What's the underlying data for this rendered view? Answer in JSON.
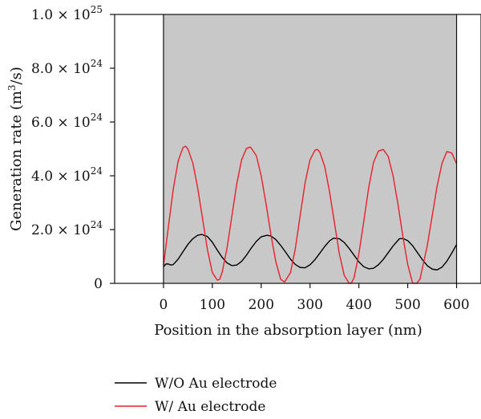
{
  "chart_data": {
    "type": "line",
    "xlabel": "Position in the absorption layer (nm)",
    "ylabel_prefix": "Generation rate (m",
    "ylabel_sup": "3",
    "ylabel_suffix": "/s)",
    "xlim": [
      -100,
      650
    ],
    "ylim": [
      0,
      1e+25
    ],
    "shaded_region_x": [
      0,
      600
    ],
    "shaded_color": "#c8c8c8",
    "x_ticks": [
      {
        "value": 0,
        "label": "0"
      },
      {
        "value": 100,
        "label": "100"
      },
      {
        "value": 200,
        "label": "200"
      },
      {
        "value": 300,
        "label": "300"
      },
      {
        "value": 400,
        "label": "400"
      },
      {
        "value": 500,
        "label": "500"
      },
      {
        "value": 600,
        "label": "600"
      }
    ],
    "y_ticks": [
      {
        "value": 0,
        "mant": "0",
        "exp": ""
      },
      {
        "value": 2e+24,
        "mant": "2.0 × 10",
        "exp": "24"
      },
      {
        "value": 4e+24,
        "mant": "4.0 × 10",
        "exp": "24"
      },
      {
        "value": 6e+24,
        "mant": "6.0 × 10",
        "exp": "24"
      },
      {
        "value": 8e+24,
        "mant": "8.0 × 10",
        "exp": "24"
      },
      {
        "value": 1e+25,
        "mant": "1.0 × 10",
        "exp": "25"
      }
    ],
    "series": [
      {
        "name": "W/O Au electrode",
        "color": "#000000",
        "x": [
          0,
          5,
          10,
          15,
          20,
          30,
          40,
          50,
          60,
          70,
          78,
          90,
          100,
          110,
          120,
          130,
          140,
          150,
          160,
          170,
          180,
          190,
          200,
          212,
          220,
          230,
          240,
          250,
          260,
          270,
          280,
          290,
          300,
          310,
          320,
          330,
          340,
          348,
          360,
          370,
          380,
          390,
          400,
          410,
          420,
          430,
          440,
          450,
          460,
          470,
          483,
          490,
          500,
          510,
          520,
          530,
          540,
          550,
          560,
          570,
          580,
          590,
          600
        ],
        "y": [
          6.2e+23,
          7.2e+23,
          7.2e+23,
          6.8e+23,
          7e+23,
          9e+23,
          1.18e+24,
          1.45e+24,
          1.66e+24,
          1.79e+24,
          1.82e+24,
          1.74e+24,
          1.53e+24,
          1.24e+24,
          9.7e+23,
          7.6e+23,
          6.6e+23,
          6.8e+23,
          8.2e+23,
          1.05e+24,
          1.32e+24,
          1.56e+24,
          1.73e+24,
          1.79e+24,
          1.76e+24,
          1.63e+24,
          1.41e+24,
          1.16e+24,
          9e+23,
          7e+23,
          5.9e+23,
          5.8e+23,
          6.9e+23,
          8.8e+23,
          1.12e+24,
          1.37e+24,
          1.58e+24,
          1.68e+24,
          1.66e+24,
          1.52e+24,
          1.3e+24,
          1.05e+24,
          8e+23,
          6.2e+23,
          5.4e+23,
          5.6e+23,
          6.9e+23,
          8.9e+23,
          1.14e+24,
          1.39e+24,
          1.66e+24,
          1.67e+24,
          1.59e+24,
          1.4e+24,
          1.14e+24,
          8.8e+23,
          6.6e+23,
          5.3e+23,
          5e+23,
          6e+23,
          8.2e+23,
          1.12e+24,
          1.44e+24
        ]
      },
      {
        "name": "W/ Au electrode",
        "color": "#e8202a",
        "x": [
          0,
          10,
          20,
          30,
          40,
          45,
          50,
          60,
          70,
          80,
          90,
          100,
          110,
          115,
          120,
          130,
          140,
          150,
          160,
          170,
          178,
          190,
          200,
          210,
          220,
          230,
          240,
          248,
          260,
          270,
          280,
          290,
          300,
          310,
          315,
          320,
          330,
          340,
          350,
          360,
          370,
          380,
          384,
          390,
          400,
          410,
          420,
          430,
          440,
          450,
          460,
          470,
          480,
          490,
          500,
          510,
          518,
          525,
          540,
          550,
          560,
          570,
          580,
          590,
          600
        ],
        "y": [
          6.6e+23,
          2.1e+24,
          3.5e+24,
          4.55e+24,
          5.05e+24,
          5.1e+24,
          5e+24,
          4.48e+24,
          3.55e+24,
          2.4e+24,
          1.25e+24,
          4e+23,
          1.2e+23,
          1.5e+23,
          4e+23,
          1.3e+24,
          2.5e+24,
          3.7e+24,
          4.6e+24,
          5.02e+24,
          5.07e+24,
          4.75e+24,
          4e+24,
          2.95e+24,
          1.8e+24,
          8e+23,
          1.5e+23,
          5e+22,
          4e+23,
          1.3e+24,
          2.55e+24,
          3.75e+24,
          4.6e+24,
          4.95e+24,
          4.98e+24,
          4.88e+24,
          4.35e+24,
          3.4e+24,
          2.25e+24,
          1.1e+24,
          3e+23,
          0,
          0,
          2e+23,
          1.1e+24,
          2.3e+24,
          3.55e+24,
          4.5e+24,
          4.92e+24,
          4.98e+24,
          4.72e+24,
          4e+24,
          2.95e+24,
          1.75e+24,
          7e+23,
          1e+22,
          0,
          1.5e+23,
          1.4e+24,
          2.5e+24,
          3.6e+24,
          4.45e+24,
          4.9e+24,
          4.85e+24,
          4.45e+24
        ]
      }
    ],
    "legend_position": "bottom-left"
  }
}
